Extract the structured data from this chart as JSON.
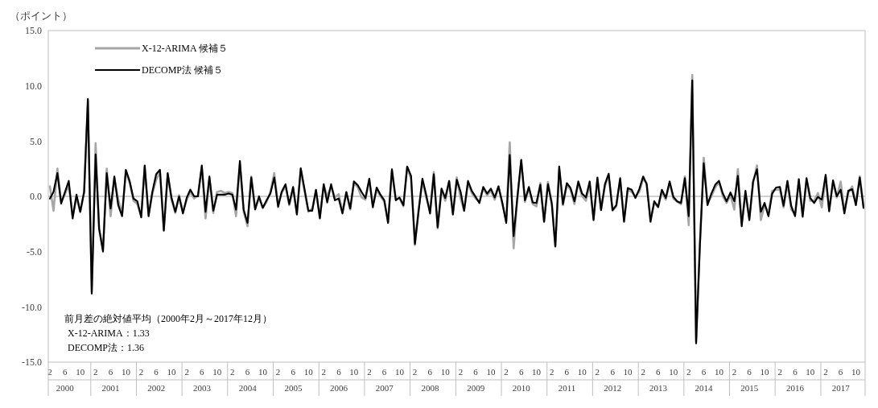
{
  "chart_data": {
    "type": "line",
    "ylabel": "（ポイント）",
    "x": [
      "2000-02",
      "2000-03",
      "2000-04",
      "2000-05",
      "2000-06",
      "2000-07",
      "2000-08",
      "2000-09",
      "2000-10",
      "2000-11",
      "2000-12",
      "2001-01",
      "2001-02",
      "2001-03",
      "2001-04",
      "2001-05",
      "2001-06",
      "2001-07",
      "2001-08",
      "2001-09",
      "2001-10",
      "2001-11",
      "2001-12",
      "2002-01",
      "2002-02",
      "2002-03",
      "2002-04",
      "2002-05",
      "2002-06",
      "2002-07",
      "2002-08",
      "2002-09",
      "2002-10",
      "2002-11",
      "2002-12",
      "2003-01",
      "2003-02",
      "2003-03",
      "2003-04",
      "2003-05",
      "2003-06",
      "2003-07",
      "2003-08",
      "2003-09",
      "2003-10",
      "2003-11",
      "2003-12",
      "2004-01",
      "2004-02",
      "2004-03",
      "2004-04",
      "2004-05",
      "2004-06",
      "2004-07",
      "2004-08",
      "2004-09",
      "2004-10",
      "2004-11",
      "2004-12",
      "2005-01",
      "2005-02",
      "2005-03",
      "2005-04",
      "2005-05",
      "2005-06",
      "2005-07",
      "2005-08",
      "2005-09",
      "2005-10",
      "2005-11",
      "2005-12",
      "2006-01",
      "2006-02",
      "2006-03",
      "2006-04",
      "2006-05",
      "2006-06",
      "2006-07",
      "2006-08",
      "2006-09",
      "2006-10",
      "2006-11",
      "2006-12",
      "2007-01",
      "2007-02",
      "2007-03",
      "2007-04",
      "2007-05",
      "2007-06",
      "2007-07",
      "2007-08",
      "2007-09",
      "2007-10",
      "2007-11",
      "2007-12",
      "2008-01",
      "2008-02",
      "2008-03",
      "2008-04",
      "2008-05",
      "2008-06",
      "2008-07",
      "2008-08",
      "2008-09",
      "2008-10",
      "2008-11",
      "2008-12",
      "2009-01",
      "2009-02",
      "2009-03",
      "2009-04",
      "2009-05",
      "2009-06",
      "2009-07",
      "2009-08",
      "2009-09",
      "2009-10",
      "2009-11",
      "2009-12",
      "2010-01",
      "2010-02",
      "2010-03",
      "2010-04",
      "2010-05",
      "2010-06",
      "2010-07",
      "2010-08",
      "2010-09",
      "2010-10",
      "2010-11",
      "2010-12",
      "2011-01",
      "2011-02",
      "2011-03",
      "2011-04",
      "2011-05",
      "2011-06",
      "2011-07",
      "2011-08",
      "2011-09",
      "2011-10",
      "2011-11",
      "2011-12",
      "2012-01",
      "2012-02",
      "2012-03",
      "2012-04",
      "2012-05",
      "2012-06",
      "2012-07",
      "2012-08",
      "2012-09",
      "2012-10",
      "2012-11",
      "2012-12",
      "2013-01",
      "2013-02",
      "2013-03",
      "2013-04",
      "2013-05",
      "2013-06",
      "2013-07",
      "2013-08",
      "2013-09",
      "2013-10",
      "2013-11",
      "2013-12",
      "2014-01",
      "2014-02",
      "2014-03",
      "2014-04",
      "2014-05",
      "2014-06",
      "2014-07",
      "2014-08",
      "2014-09",
      "2014-10",
      "2014-11",
      "2014-12",
      "2015-01",
      "2015-02",
      "2015-03",
      "2015-04",
      "2015-05",
      "2015-06",
      "2015-07",
      "2015-08",
      "2015-09",
      "2015-10",
      "2015-11",
      "2015-12",
      "2016-01",
      "2016-02",
      "2016-03",
      "2016-04",
      "2016-05",
      "2016-06",
      "2016-07",
      "2016-08",
      "2016-09",
      "2016-10",
      "2016-11",
      "2016-12",
      "2017-01",
      "2017-02",
      "2017-03",
      "2017-04",
      "2017-05",
      "2017-06",
      "2017-07",
      "2017-08",
      "2017-09",
      "2017-10",
      "2017-11",
      "2017-12"
    ],
    "series": [
      {
        "name": "X-12-ARIMA 候補５",
        "color": "#a6a6a6",
        "values": [
          0.9,
          -1.3,
          2.5,
          -0.5,
          0.2,
          1.0,
          -1.8,
          -0.1,
          -1.4,
          0.4,
          8.6,
          -8.6,
          4.8,
          -3.0,
          -4.8,
          2.5,
          -1.8,
          1.6,
          -0.3,
          -1.6,
          2.2,
          1.2,
          -0.4,
          -0.7,
          -1.8,
          2.6,
          -1.6,
          0.2,
          1.5,
          2.2,
          -3.0,
          2.0,
          -0.3,
          -1.5,
          0.1,
          -1.4,
          -0.3,
          0.4,
          -0.2,
          0.1,
          2.6,
          -2.0,
          1.6,
          -1.5,
          0.4,
          0.5,
          0.3,
          0.4,
          0.3,
          -1.8,
          2.9,
          -1.4,
          -2.7,
          1.8,
          -1.0,
          -0.2,
          -1.0,
          -0.5,
          0.4,
          2.1,
          -0.8,
          0.3,
          0.9,
          -0.8,
          0.7,
          -1.5,
          2.4,
          0.4,
          -1.4,
          -1.1,
          0.5,
          -1.9,
          1.0,
          0.0,
          0.9,
          -0.1,
          0.2,
          -1.4,
          0.3,
          -1.2,
          1.2,
          0.8,
          -0.1,
          -0.3,
          1.5,
          -0.8,
          0.6,
          0.0,
          -0.5,
          -2.3,
          2.3,
          -0.2,
          -0.2,
          -0.9,
          2.6,
          1.6,
          -4.4,
          -1.2,
          1.4,
          -0.1,
          -1.4,
          2.2,
          -2.9,
          0.6,
          -0.4,
          1.3,
          -1.5,
          1.7,
          -0.2,
          -1.3,
          1.2,
          0.3,
          -0.2,
          -0.5,
          0.7,
          0.1,
          0.5,
          -0.3,
          0.9,
          -0.7,
          -2.2,
          4.9,
          -4.7,
          -0.2,
          3.2,
          -0.5,
          0.7,
          -0.7,
          -0.9,
          1.2,
          -2.2,
          1.3,
          -0.6,
          -4.5,
          2.4,
          -0.8,
          1.0,
          0.6,
          -0.7,
          1.2,
          0.0,
          -0.4,
          1.1,
          -2.0,
          1.5,
          -1.1,
          0.9,
          1.9,
          -1.3,
          -0.9,
          1.5,
          -2.2,
          0.6,
          0.4,
          0.0,
          0.4,
          1.6,
          1.2,
          -2.0,
          -0.6,
          -1.0,
          0.4,
          -0.3,
          1.2,
          -0.2,
          -0.5,
          -0.7,
          1.8,
          -2.6,
          11.0,
          -13.1,
          -4.3,
          3.5,
          -0.6,
          0.0,
          0.8,
          1.3,
          0.0,
          -0.6,
          0.1,
          -1.2,
          2.45,
          -2.4,
          0.2,
          -2.0,
          1.2,
          2.8,
          -2.15,
          -0.8,
          -1.5,
          0.5,
          0.6,
          0.6,
          -1.0,
          1.2,
          -1.2,
          -1.6,
          1.3,
          -1.6,
          1.4,
          -0.4,
          -0.4,
          0.3,
          -1.0,
          1.7,
          -1.2,
          1.2,
          -0.1,
          1.35,
          -1.3,
          0.3,
          0.9,
          -0.6,
          1.8,
          -0.8
        ]
      },
      {
        "name": "DECOMP法 候補５",
        "color": "#000000",
        "values": [
          -0.2,
          0.4,
          2.1,
          -0.65,
          0.4,
          1.4,
          -2.0,
          0.15,
          -1.4,
          0.4,
          8.8,
          -8.8,
          3.8,
          -2.9,
          -5.0,
          2.1,
          -1.1,
          1.8,
          -0.8,
          -1.8,
          2.4,
          1.35,
          -0.2,
          -0.45,
          -1.9,
          2.8,
          -1.8,
          0.4,
          2.0,
          2.4,
          -3.1,
          2.1,
          -0.1,
          -1.4,
          0.0,
          -1.55,
          -0.1,
          0.6,
          0.0,
          0.0,
          2.8,
          -1.4,
          1.8,
          -1.3,
          0.15,
          0.15,
          0.15,
          0.25,
          0.15,
          -1.2,
          3.2,
          -1.2,
          -2.4,
          1.7,
          -1.2,
          0.0,
          -1.05,
          -0.35,
          0.25,
          1.7,
          -0.95,
          0.4,
          1.1,
          -0.7,
          0.85,
          -1.65,
          2.55,
          0.6,
          -1.3,
          -1.3,
          0.6,
          -2.0,
          1.1,
          -0.55,
          1.1,
          -0.35,
          -0.2,
          -1.55,
          0.4,
          -1.1,
          1.35,
          1.0,
          0.4,
          -0.15,
          1.6,
          -1.0,
          0.8,
          0.15,
          -0.35,
          -2.4,
          2.45,
          -0.35,
          -0.1,
          -0.8,
          2.7,
          1.85,
          -4.3,
          -1.4,
          1.6,
          0.15,
          -1.55,
          2.0,
          -2.8,
          0.7,
          -0.15,
          1.4,
          -1.65,
          1.5,
          0.4,
          -1.3,
          1.4,
          0.5,
          -0.05,
          -0.6,
          0.85,
          0.25,
          0.7,
          -0.1,
          0.9,
          -0.6,
          -2.4,
          3.75,
          -3.6,
          -0.1,
          3.3,
          -0.35,
          0.85,
          -0.55,
          -0.6,
          1.05,
          -2.3,
          1.1,
          -0.7,
          -4.55,
          2.7,
          -0.7,
          1.2,
          0.75,
          -0.45,
          1.35,
          0.25,
          -0.1,
          1.35,
          -2.15,
          1.7,
          -1.25,
          1.1,
          2.05,
          -1.25,
          -0.8,
          1.65,
          -2.3,
          0.75,
          0.6,
          -0.15,
          0.65,
          1.8,
          1.1,
          -2.3,
          -0.45,
          -0.95,
          0.6,
          -0.15,
          1.35,
          -0.05,
          -0.45,
          -0.6,
          1.65,
          -1.8,
          10.5,
          -13.3,
          -4.5,
          3.0,
          -0.8,
          0.25,
          1.05,
          1.4,
          0.25,
          -0.45,
          0.35,
          -0.45,
          1.85,
          -2.7,
          0.5,
          -2.15,
          1.35,
          2.45,
          -1.4,
          -0.6,
          -1.8,
          0.25,
          0.8,
          0.85,
          -0.85,
          1.4,
          -0.85,
          -1.8,
          1.55,
          -1.85,
          1.65,
          -0.15,
          -0.6,
          -0.05,
          -0.3,
          1.95,
          -1.35,
          1.45,
          0.0,
          0.6,
          -1.55,
          0.5,
          0.65,
          -0.8,
          1.7,
          -1.05
        ]
      }
    ],
    "xlim": [
      "2000-02",
      "2017-12"
    ],
    "xticks": [
      {
        "value": "2000-02",
        "label": "2"
      },
      {
        "value": "2000-06",
        "label": "6"
      },
      {
        "value": "2000-10",
        "label": "10"
      },
      {
        "value": "2001-02",
        "label": "2"
      },
      {
        "value": "2001-06",
        "label": "6"
      },
      {
        "value": "2001-10",
        "label": "10"
      },
      {
        "value": "2002-02",
        "label": "2"
      },
      {
        "value": "2002-06",
        "label": "6"
      },
      {
        "value": "2002-10",
        "label": "10"
      },
      {
        "value": "2003-02",
        "label": "2"
      },
      {
        "value": "2003-06",
        "label": "6"
      },
      {
        "value": "2003-10",
        "label": "10"
      },
      {
        "value": "2004-02",
        "label": "2"
      },
      {
        "value": "2004-06",
        "label": "6"
      },
      {
        "value": "2004-10",
        "label": "10"
      },
      {
        "value": "2005-02",
        "label": "2"
      },
      {
        "value": "2005-06",
        "label": "6"
      },
      {
        "value": "2005-10",
        "label": "10"
      },
      {
        "value": "2006-02",
        "label": "2"
      },
      {
        "value": "2006-06",
        "label": "6"
      },
      {
        "value": "2006-10",
        "label": "10"
      },
      {
        "value": "2007-02",
        "label": "2"
      },
      {
        "value": "2007-06",
        "label": "6"
      },
      {
        "value": "2007-10",
        "label": "10"
      },
      {
        "value": "2008-02",
        "label": "2"
      },
      {
        "value": "2008-06",
        "label": "6"
      },
      {
        "value": "2008-10",
        "label": "10"
      },
      {
        "value": "2009-02",
        "label": "2"
      },
      {
        "value": "2009-06",
        "label": "6"
      },
      {
        "value": "2009-10",
        "label": "10"
      },
      {
        "value": "2010-02",
        "label": "2"
      },
      {
        "value": "2010-06",
        "label": "6"
      },
      {
        "value": "2010-10",
        "label": "10"
      },
      {
        "value": "2011-02",
        "label": "2"
      },
      {
        "value": "2011-06",
        "label": "6"
      },
      {
        "value": "2011-10",
        "label": "10"
      },
      {
        "value": "2012-02",
        "label": "2"
      },
      {
        "value": "2012-06",
        "label": "6"
      },
      {
        "value": "2012-10",
        "label": "10"
      },
      {
        "value": "2013-02",
        "label": "2"
      },
      {
        "value": "2013-06",
        "label": "6"
      },
      {
        "value": "2013-10",
        "label": "10"
      },
      {
        "value": "2014-02",
        "label": "2"
      },
      {
        "value": "2014-06",
        "label": "6"
      },
      {
        "value": "2014-10",
        "label": "10"
      },
      {
        "value": "2015-02",
        "label": "2"
      },
      {
        "value": "2015-06",
        "label": "6"
      },
      {
        "value": "2015-10",
        "label": "10"
      },
      {
        "value": "2016-02",
        "label": "2"
      },
      {
        "value": "2016-06",
        "label": "6"
      },
      {
        "value": "2016-10",
        "label": "10"
      },
      {
        "value": "2017-02",
        "label": "2"
      },
      {
        "value": "2017-06",
        "label": "6"
      },
      {
        "value": "2017-10",
        "label": "10"
      }
    ],
    "ylim": [
      -15,
      15
    ],
    "yticks": [
      {
        "value": -15,
        "label": "-15.0"
      },
      {
        "value": -10,
        "label": "-10.0"
      },
      {
        "value": -5,
        "label": "-5.0"
      },
      {
        "value": 0,
        "label": "0.0"
      },
      {
        "value": 5,
        "label": "5.0"
      },
      {
        "value": 10,
        "label": "10.0"
      },
      {
        "value": 15,
        "label": "15.0"
      }
    ],
    "ref_lines": [
      {
        "axis": "y",
        "value": 0,
        "color": "#bfbfbf"
      }
    ],
    "legend": "top left",
    "marker": "none",
    "line_style": "solid",
    "grid": false,
    "annotations": [
      "前月差の絶対値平均（2000年2月～2017年12月）",
      "X-12-ARIMA：1.33",
      "DECOMP法：1.36",
      "2000",
      "2001",
      "2002",
      "2003",
      "2004",
      "2005",
      "2006",
      "2007",
      "2008",
      "2009",
      "2010",
      "2011",
      "2012",
      "2013",
      "2014",
      "2015",
      "2016",
      "2017"
    ]
  }
}
